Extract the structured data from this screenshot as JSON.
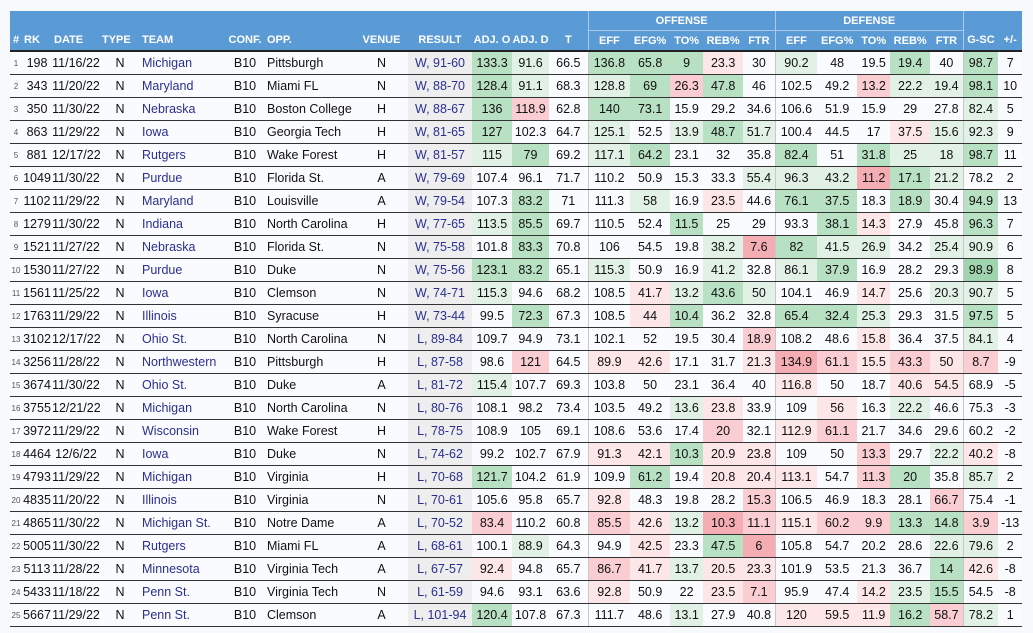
{
  "header": {
    "groups": {
      "offense": "OFFENSE",
      "defense": "DEFENSE"
    },
    "columns": [
      "#",
      "RK",
      "DATE",
      "TYPE",
      "TEAM",
      "CONF.",
      "OPP.",
      "VENUE",
      "RESULT",
      "ADJ. O",
      "ADJ. D",
      "T",
      "EFF",
      "EFG%",
      "TO%",
      "REB%",
      "FTR",
      "EFF",
      "EFG%",
      "TO%",
      "REB%",
      "FTR",
      "G-SC",
      "+/-"
    ]
  },
  "heat_colors": {
    "g3": "#9fd4ae",
    "g2": "#b8e0c3",
    "g1": "#e1f1e5",
    "r1": "#fde6e8",
    "r2": "#f9cdd1",
    "r3": "#f4adb3"
  },
  "rows": [
    {
      "c": [
        "1",
        "198",
        "11/16/22",
        "N",
        "Michigan",
        "B10",
        "Pittsburgh",
        "N",
        "W, 91-60",
        "133.3",
        "91.6",
        "66.5",
        "136.8",
        "65.8",
        "9",
        "23.3",
        "30",
        "90.2",
        "48",
        "19.5",
        "19.4",
        "40",
        "98.7",
        "7"
      ],
      "heat": [
        2,
        1,
        0,
        2,
        2,
        2,
        -1,
        0,
        1,
        0,
        0,
        2,
        0,
        2
      ]
    },
    {
      "c": [
        "2",
        "343",
        "11/20/22",
        "N",
        "Maryland",
        "B10",
        "Miami FL",
        "N",
        "W, 88-70",
        "128.4",
        "91.1",
        "68.3",
        "128.8",
        "69",
        "26.3",
        "47.8",
        "46",
        "102.5",
        "49.2",
        "13.2",
        "22.2",
        "19.4",
        "98.1",
        "10"
      ],
      "heat": [
        2,
        1,
        0,
        1,
        2,
        -2,
        2,
        0,
        0,
        0,
        -2,
        1,
        1,
        2
      ]
    },
    {
      "c": [
        "3",
        "350",
        "11/30/22",
        "N",
        "Nebraska",
        "B10",
        "Boston College",
        "H",
        "W, 88-67",
        "136",
        "118.9",
        "62.8",
        "140",
        "73.1",
        "15.9",
        "29.2",
        "34.6",
        "106.6",
        "51.9",
        "15.9",
        "29",
        "27.8",
        "82.4",
        "5"
      ],
      "heat": [
        2,
        -2,
        0,
        2,
        2,
        0,
        0,
        0,
        0,
        0,
        0,
        0,
        0,
        1
      ]
    },
    {
      "c": [
        "4",
        "863",
        "11/29/22",
        "N",
        "Iowa",
        "B10",
        "Georgia Tech",
        "H",
        "W, 81-65",
        "127",
        "102.3",
        "64.7",
        "125.1",
        "52.5",
        "13.9",
        "48.7",
        "51.7",
        "100.4",
        "44.5",
        "17",
        "37.5",
        "15.6",
        "92.3",
        "9"
      ],
      "heat": [
        2,
        0,
        0,
        1,
        0,
        1,
        2,
        1,
        0,
        0,
        0,
        -1,
        1,
        1
      ]
    },
    {
      "c": [
        "5",
        "881",
        "12/17/22",
        "N",
        "Rutgers",
        "B10",
        "Wake Forest",
        "H",
        "W, 81-57",
        "115",
        "79",
        "69.2",
        "117.1",
        "64.2",
        "23.1",
        "32",
        "35.8",
        "82.4",
        "51",
        "31.8",
        "25",
        "18",
        "98.7",
        "11"
      ],
      "heat": [
        1,
        2,
        0,
        1,
        2,
        0,
        0,
        0,
        2,
        0,
        2,
        1,
        1,
        2
      ]
    },
    {
      "c": [
        "6",
        "1049",
        "11/30/22",
        "N",
        "Purdue",
        "B10",
        "Florida St.",
        "A",
        "W, 79-69",
        "107.4",
        "96.1",
        "71.7",
        "110.2",
        "50.9",
        "15.3",
        "33.3",
        "55.4",
        "96.3",
        "43.2",
        "11.2",
        "17.1",
        "21.2",
        "78.2",
        "2"
      ],
      "heat": [
        0,
        0,
        0,
        0,
        0,
        0,
        0,
        1,
        1,
        1,
        -3,
        2,
        1,
        0
      ]
    },
    {
      "c": [
        "7",
        "1102",
        "11/29/22",
        "N",
        "Maryland",
        "B10",
        "Louisville",
        "A",
        "W, 79-54",
        "107.3",
        "83.2",
        "71",
        "111.3",
        "58",
        "16.9",
        "23.5",
        "44.6",
        "76.1",
        "37.5",
        "18.3",
        "18.9",
        "30.4",
        "94.9",
        "13"
      ],
      "heat": [
        0,
        2,
        0,
        0,
        1,
        0,
        -1,
        0,
        2,
        2,
        0,
        2,
        0,
        2
      ]
    },
    {
      "c": [
        "8",
        "1279",
        "11/30/22",
        "N",
        "Indiana",
        "B10",
        "North Carolina",
        "H",
        "W, 77-65",
        "113.5",
        "85.5",
        "69.7",
        "110.5",
        "52.4",
        "11.5",
        "25",
        "29",
        "93.3",
        "38.1",
        "14.3",
        "27.9",
        "45.8",
        "96.3",
        "7"
      ],
      "heat": [
        1,
        2,
        0,
        0,
        0,
        2,
        0,
        0,
        0,
        2,
        -1,
        0,
        0,
        2
      ]
    },
    {
      "c": [
        "9",
        "1521",
        "11/27/22",
        "N",
        "Nebraska",
        "B10",
        "Florida St.",
        "N",
        "W, 75-58",
        "101.8",
        "83.3",
        "70.8",
        "106",
        "54.5",
        "19.8",
        "38.2",
        "7.6",
        "82",
        "41.5",
        "26.9",
        "34.2",
        "25.4",
        "90.9",
        "6"
      ],
      "heat": [
        0,
        2,
        0,
        0,
        0,
        0,
        1,
        -3,
        2,
        1,
        1,
        0,
        1,
        1
      ]
    },
    {
      "c": [
        "10",
        "1530",
        "11/27/22",
        "N",
        "Purdue",
        "B10",
        "Duke",
        "N",
        "W, 75-56",
        "123.1",
        "83.2",
        "65.1",
        "115.3",
        "50.9",
        "16.9",
        "41.2",
        "32.8",
        "86.1",
        "37.9",
        "16.9",
        "28.2",
        "29.3",
        "98.9",
        "8"
      ],
      "heat": [
        2,
        2,
        0,
        1,
        0,
        0,
        1,
        0,
        1,
        2,
        0,
        0,
        0,
        3
      ]
    },
    {
      "c": [
        "11",
        "1561",
        "11/25/22",
        "N",
        "Iowa",
        "B10",
        "Clemson",
        "N",
        "W, 74-71",
        "115.3",
        "94.6",
        "68.2",
        "108.5",
        "41.7",
        "13.2",
        "43.6",
        "50",
        "104.1",
        "46.9",
        "14.7",
        "25.6",
        "20.3",
        "90.7",
        "5"
      ],
      "heat": [
        1,
        0,
        0,
        0,
        -1,
        1,
        2,
        1,
        0,
        0,
        -1,
        0,
        1,
        1
      ]
    },
    {
      "c": [
        "12",
        "1763",
        "11/29/22",
        "N",
        "Illinois",
        "B10",
        "Syracuse",
        "H",
        "W, 73-44",
        "99.5",
        "72.3",
        "67.3",
        "108.5",
        "44",
        "10.4",
        "36.2",
        "32.8",
        "65.4",
        "32.4",
        "25.3",
        "29.3",
        "31.5",
        "97.5",
        "5"
      ],
      "heat": [
        0,
        2,
        0,
        0,
        -1,
        2,
        0,
        0,
        2,
        2,
        1,
        0,
        0,
        2
      ]
    },
    {
      "c": [
        "13",
        "3102",
        "12/17/22",
        "N",
        "Ohio St.",
        "B10",
        "North Carolina",
        "N",
        "L, 89-84",
        "109.7",
        "94.9",
        "73.1",
        "102.1",
        "52",
        "19.5",
        "30.4",
        "18.9",
        "108.2",
        "48.6",
        "15.8",
        "36.4",
        "37.5",
        "84.1",
        "4"
      ],
      "heat": [
        0,
        0,
        0,
        0,
        0,
        0,
        0,
        -2,
        0,
        0,
        -1,
        0,
        0,
        1
      ]
    },
    {
      "c": [
        "14",
        "3256",
        "11/28/22",
        "N",
        "Northwestern",
        "B10",
        "Pittsburgh",
        "H",
        "L, 87-58",
        "98.6",
        "121",
        "64.5",
        "89.9",
        "42.6",
        "17.1",
        "31.7",
        "21.3",
        "134.9",
        "61.1",
        "15.5",
        "43.3",
        "50",
        "8.7",
        "-9"
      ],
      "heat": [
        0,
        -2,
        0,
        -1,
        -1,
        0,
        0,
        -1,
        -3,
        -2,
        -1,
        -2,
        -1,
        -2
      ]
    },
    {
      "c": [
        "15",
        "3674",
        "11/30/22",
        "N",
        "Ohio St.",
        "B10",
        "Duke",
        "A",
        "L, 81-72",
        "115.4",
        "107.7",
        "69.3",
        "103.8",
        "50",
        "23.1",
        "36.4",
        "40",
        "116.8",
        "50",
        "18.7",
        "40.6",
        "54.5",
        "68.9",
        "-5"
      ],
      "heat": [
        1,
        0,
        0,
        0,
        0,
        0,
        0,
        0,
        -1,
        0,
        0,
        -1,
        -1,
        0
      ]
    },
    {
      "c": [
        "16",
        "3755",
        "12/21/22",
        "N",
        "Michigan",
        "B10",
        "North Carolina",
        "N",
        "L, 80-76",
        "108.1",
        "98.2",
        "73.4",
        "103.5",
        "49.2",
        "13.6",
        "23.8",
        "33.9",
        "109",
        "56",
        "16.3",
        "22.2",
        "46.6",
        "75.3",
        "-3"
      ],
      "heat": [
        0,
        0,
        0,
        0,
        0,
        1,
        -1,
        0,
        0,
        -1,
        0,
        1,
        0,
        0
      ]
    },
    {
      "c": [
        "17",
        "3972",
        "11/29/22",
        "N",
        "Wisconsin",
        "B10",
        "Wake Forest",
        "H",
        "L, 78-75",
        "108.9",
        "105",
        "69.1",
        "108.6",
        "53.6",
        "17.4",
        "20",
        "32.1",
        "112.9",
        "61.1",
        "21.7",
        "34.6",
        "29.6",
        "60.2",
        "-2"
      ],
      "heat": [
        0,
        0,
        0,
        0,
        0,
        0,
        -2,
        0,
        -1,
        -2,
        0,
        0,
        0,
        0
      ]
    },
    {
      "c": [
        "18",
        "4464",
        "12/6/22",
        "N",
        "Iowa",
        "B10",
        "Duke",
        "N",
        "L, 74-62",
        "99.2",
        "102.7",
        "67.9",
        "91.3",
        "42.1",
        "10.3",
        "20.9",
        "23.8",
        "109",
        "50",
        "13.3",
        "29.7",
        "22.2",
        "40.2",
        "-8"
      ],
      "heat": [
        0,
        0,
        0,
        -1,
        -1,
        2,
        -1,
        -1,
        0,
        0,
        -2,
        0,
        1,
        -1
      ]
    },
    {
      "c": [
        "19",
        "4793",
        "11/29/22",
        "N",
        "Michigan",
        "B10",
        "Virginia",
        "H",
        "L, 70-68",
        "121.7",
        "104.2",
        "61.9",
        "109.9",
        "61.2",
        "19.4",
        "20.8",
        "20.4",
        "113.1",
        "54.7",
        "11.3",
        "20",
        "35.8",
        "85.7",
        "2"
      ],
      "heat": [
        2,
        0,
        0,
        0,
        2,
        0,
        -1,
        -1,
        -1,
        0,
        -2,
        2,
        0,
        1
      ]
    },
    {
      "c": [
        "20",
        "4835",
        "11/20/22",
        "N",
        "Illinois",
        "B10",
        "Virginia",
        "N",
        "L, 70-61",
        "105.6",
        "95.8",
        "65.7",
        "92.8",
        "48.3",
        "19.8",
        "28.2",
        "15.3",
        "106.5",
        "46.9",
        "18.3",
        "28.1",
        "66.7",
        "75.4",
        "-1"
      ],
      "heat": [
        0,
        0,
        0,
        -1,
        0,
        0,
        0,
        -2,
        0,
        0,
        0,
        0,
        -2,
        0
      ]
    },
    {
      "c": [
        "21",
        "4865",
        "11/30/22",
        "N",
        "Michigan St.",
        "B10",
        "Notre Dame",
        "A",
        "L, 70-52",
        "83.4",
        "110.2",
        "60.8",
        "85.5",
        "42.6",
        "13.2",
        "10.3",
        "11.1",
        "115.1",
        "60.2",
        "9.9",
        "13.3",
        "14.8",
        "3.9",
        "-13"
      ],
      "heat": [
        -2,
        0,
        0,
        -2,
        -1,
        1,
        -3,
        -2,
        -1,
        -2,
        -2,
        2,
        2,
        -2
      ]
    },
    {
      "c": [
        "22",
        "5005",
        "11/30/22",
        "N",
        "Rutgers",
        "B10",
        "Miami FL",
        "A",
        "L, 68-61",
        "100.1",
        "88.9",
        "64.3",
        "94.9",
        "42.5",
        "23.3",
        "47.5",
        "6",
        "105.8",
        "54.7",
        "20.2",
        "28.6",
        "22.6",
        "79.6",
        "2"
      ],
      "heat": [
        0,
        1,
        0,
        0,
        -1,
        0,
        2,
        -3,
        0,
        0,
        0,
        0,
        1,
        1
      ]
    },
    {
      "c": [
        "23",
        "5113",
        "11/28/22",
        "N",
        "Minnesota",
        "B10",
        "Virginia Tech",
        "A",
        "L, 67-57",
        "92.4",
        "94.8",
        "65.7",
        "86.7",
        "41.7",
        "13.7",
        "20.5",
        "23.3",
        "101.9",
        "53.5",
        "21.3",
        "36.7",
        "14",
        "42.6",
        "-8"
      ],
      "heat": [
        -1,
        0,
        0,
        -2,
        -1,
        1,
        -1,
        -1,
        0,
        0,
        0,
        0,
        2,
        -1
      ]
    },
    {
      "c": [
        "24",
        "5433",
        "11/18/22",
        "N",
        "Penn St.",
        "B10",
        "Virginia Tech",
        "N",
        "L, 61-59",
        "94.6",
        "93.1",
        "63.6",
        "92.8",
        "50.9",
        "22",
        "23.5",
        "7.1",
        "95.9",
        "47.4",
        "14.2",
        "23.5",
        "15.5",
        "54.5",
        "-8"
      ],
      "heat": [
        0,
        0,
        0,
        -1,
        0,
        0,
        -1,
        -2,
        0,
        0,
        -1,
        1,
        2,
        0
      ]
    },
    {
      "c": [
        "25",
        "5667",
        "11/29/22",
        "N",
        "Penn St.",
        "B10",
        "Clemson",
        "A",
        "L, 101-94",
        "120.4",
        "107.8",
        "67.3",
        "111.7",
        "48.6",
        "13.1",
        "27.9",
        "40.8",
        "120",
        "59.5",
        "11.9",
        "16.2",
        "58.7",
        "78.2",
        "1"
      ],
      "heat": [
        2,
        0,
        0,
        0,
        0,
        1,
        0,
        0,
        -1,
        -1,
        -1,
        2,
        -2,
        1
      ]
    }
  ]
}
